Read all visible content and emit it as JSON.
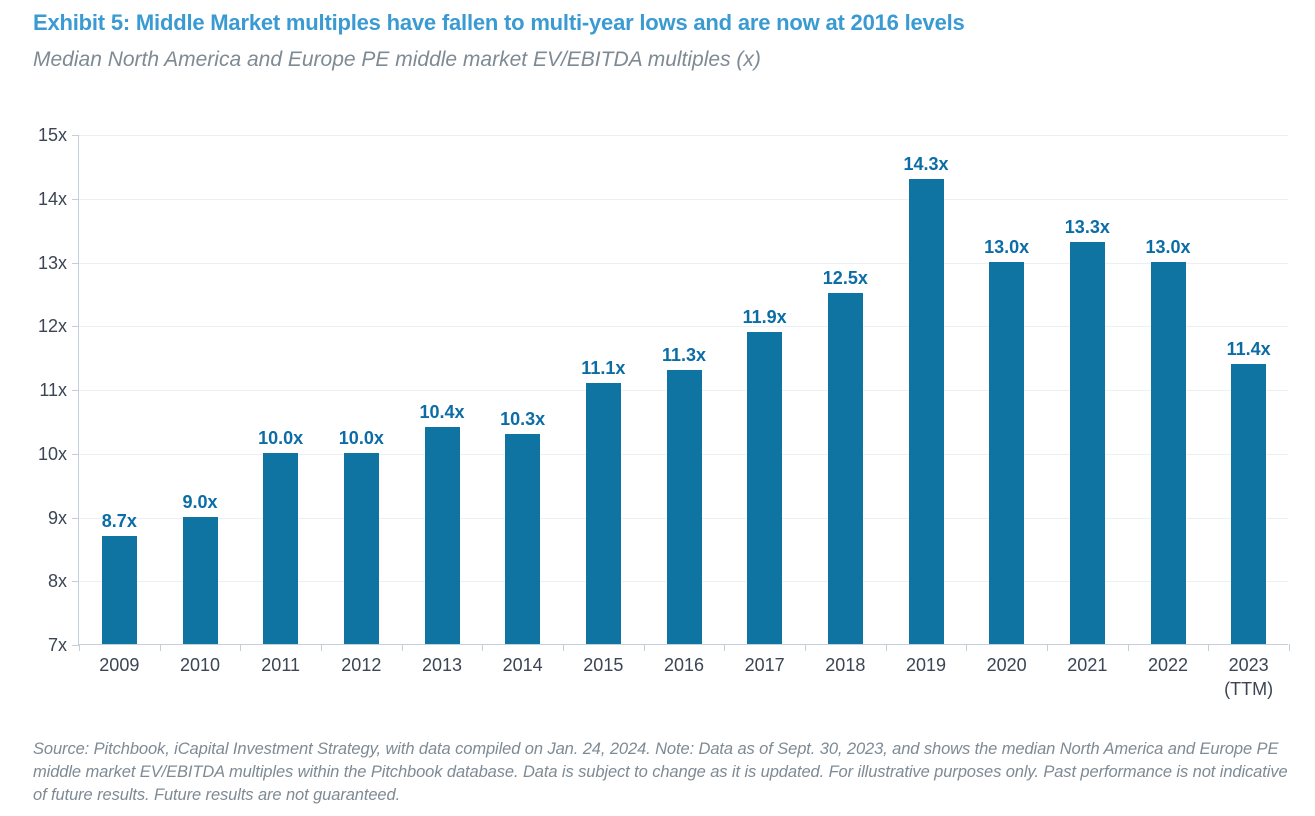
{
  "footer": {
    "text": "Source: Pitchbook, iCapital Investment Strategy, with data compiled on Jan. 24, 2024. Note: Data as of Sept. 30, 2023, and shows the median North America and Europe PE middle market EV/EBITDA multiples within the Pitchbook database. Data is subject to change as it is updated. For illustrative purposes only. Past performance is not indicative of future results. Future results are not guaranteed."
  },
  "colors": {
    "title_blue": "#3A9AD2",
    "bar_fill": "#0F74A1",
    "value_label": "#0C6CA6",
    "axis_text": "#3B4553",
    "muted_text": "#7E8A94",
    "gridline": "#ECF0F4",
    "axis_line": "#C3D0DC"
  },
  "chart_data": {
    "type": "bar",
    "title": "Exhibit 5: Middle Market multiples have fallen to multi-year lows and are now at 2016 levels",
    "subtitle": "Median North America and Europe PE middle market EV/EBITDA multiples (x)",
    "categories": [
      "2009",
      "2010",
      "2011",
      "2012",
      "2013",
      "2014",
      "2015",
      "2016",
      "2017",
      "2018",
      "2019",
      "2020",
      "2021",
      "2022",
      "2023\n(TTM)"
    ],
    "values": [
      8.7,
      9.0,
      10.0,
      10.0,
      10.4,
      10.3,
      11.1,
      11.3,
      11.9,
      12.5,
      14.3,
      13.0,
      13.3,
      13.0,
      11.4
    ],
    "value_labels": [
      "8.7x",
      "9.0x",
      "10.0x",
      "10.0x",
      "10.4x",
      "10.3x",
      "11.1x",
      "11.3x",
      "11.9x",
      "12.5x",
      "14.3x",
      "13.0x",
      "13.3x",
      "13.0x",
      "11.4x"
    ],
    "xlabel": "",
    "ylabel": "",
    "ylim": [
      7,
      15
    ],
    "yticks": [
      7,
      8,
      9,
      10,
      11,
      12,
      13,
      14,
      15
    ],
    "ytick_labels": [
      "7x",
      "8x",
      "9x",
      "10x",
      "11x",
      "12x",
      "13x",
      "14x",
      "15x"
    ],
    "grid": true,
    "legend": false,
    "bar_color": "#0F74A1"
  }
}
